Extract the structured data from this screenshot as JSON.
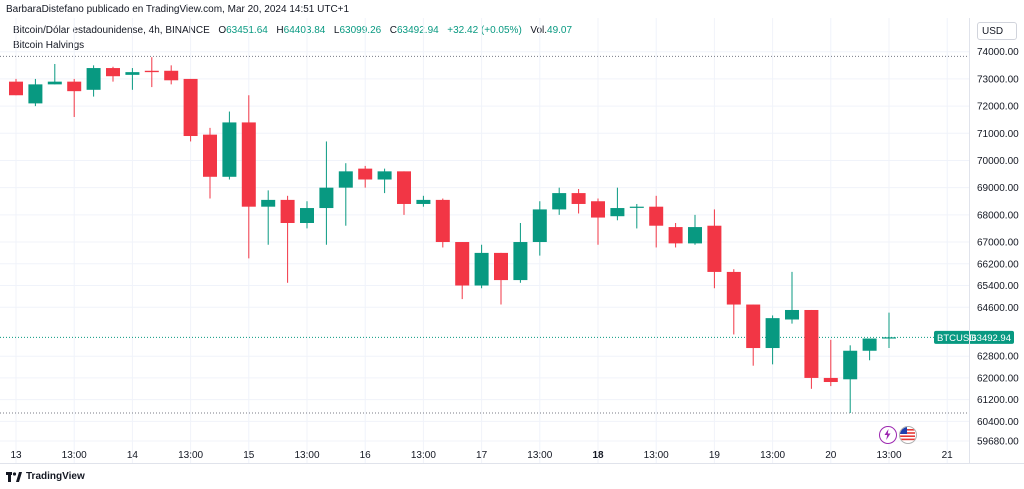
{
  "header": {
    "publisher_line": "BarbaraDistefano publicado en TradingView.com, Mar 20, 2024 14:51 UTC+1"
  },
  "legend": {
    "symbol": "Bitcoin/Dólar estadounidense, 4h, BINANCE",
    "open_label": "O",
    "open": "63451.64",
    "high_label": "H",
    "high": "64403.84",
    "low_label": "L",
    "low": "63099.26",
    "close_label": "C",
    "close": "63492.94",
    "change": "+32.42 (+0.05%)",
    "vol_label": "Vol.",
    "vol": "49.07",
    "indicator": "Bitcoin Halvings"
  },
  "currency": "USD",
  "brand": "TradingView",
  "colors": {
    "up": "#089981",
    "down": "#f23645",
    "text": "#131722",
    "grid": "#f0f3fa",
    "dotted": "#787b86"
  },
  "chart_data": {
    "type": "candlestick",
    "ylim": [
      59680,
      74800
    ],
    "y_ticks": [
      {
        "value": 74000,
        "label": "74000.00"
      },
      {
        "value": 73000,
        "label": "73000.00"
      },
      {
        "value": 72000,
        "label": "72000.00"
      },
      {
        "value": 71000,
        "label": "71000.00"
      },
      {
        "value": 70000,
        "label": "70000.00"
      },
      {
        "value": 69000,
        "label": "69000.00"
      },
      {
        "value": 68000,
        "label": "68000.00"
      },
      {
        "value": 67000,
        "label": "67000.00"
      },
      {
        "value": 66200,
        "label": "66200.00"
      },
      {
        "value": 65400,
        "label": "65400.00"
      },
      {
        "value": 64600,
        "label": "64600.00"
      },
      {
        "value": 62800,
        "label": "62800.00"
      },
      {
        "value": 62000,
        "label": "62000.00"
      },
      {
        "value": 61200,
        "label": "61200.00"
      },
      {
        "value": 60400,
        "label": "60400.00"
      },
      {
        "value": 59680,
        "label": "59680.00"
      }
    ],
    "x_ticks": [
      {
        "index": 0,
        "label": "13",
        "bold": false
      },
      {
        "index": 3,
        "label": "13:00",
        "bold": false
      },
      {
        "index": 6,
        "label": "14",
        "bold": false
      },
      {
        "index": 9,
        "label": "13:00",
        "bold": false
      },
      {
        "index": 12,
        "label": "15",
        "bold": false
      },
      {
        "index": 15,
        "label": "13:00",
        "bold": false
      },
      {
        "index": 18,
        "label": "16",
        "bold": false
      },
      {
        "index": 21,
        "label": "13:00",
        "bold": false
      },
      {
        "index": 24,
        "label": "17",
        "bold": false
      },
      {
        "index": 27,
        "label": "13:00",
        "bold": false
      },
      {
        "index": 30,
        "label": "18",
        "bold": true
      },
      {
        "index": 33,
        "label": "13:00",
        "bold": false
      },
      {
        "index": 36,
        "label": "19",
        "bold": false
      },
      {
        "index": 39,
        "label": "13:00",
        "bold": false
      },
      {
        "index": 42,
        "label": "20",
        "bold": false
      },
      {
        "index": 45,
        "label": "13:00",
        "bold": false
      },
      {
        "index": 48,
        "label": "21",
        "bold": false
      }
    ],
    "current_price": 63492.94,
    "current_price_label": "63492.94",
    "current_symbol": "BTCUSD",
    "dotted_levels": [
      73830,
      60710
    ],
    "candles": [
      {
        "o": 72900,
        "h": 73000,
        "l": 72400,
        "c": 72400
      },
      {
        "o": 72100,
        "h": 73000,
        "l": 72000,
        "c": 72800
      },
      {
        "o": 72800,
        "h": 73550,
        "l": 72800,
        "c": 72900
      },
      {
        "o": 72900,
        "h": 73000,
        "l": 71600,
        "c": 72550
      },
      {
        "o": 72600,
        "h": 73500,
        "l": 72350,
        "c": 73400
      },
      {
        "o": 73400,
        "h": 73450,
        "l": 72900,
        "c": 73100
      },
      {
        "o": 73150,
        "h": 73400,
        "l": 72600,
        "c": 73250
      },
      {
        "o": 73300,
        "h": 73800,
        "l": 72700,
        "c": 73250
      },
      {
        "o": 73300,
        "h": 73500,
        "l": 72800,
        "c": 72950
      },
      {
        "o": 73000,
        "h": 73000,
        "l": 70700,
        "c": 70900
      },
      {
        "o": 70950,
        "h": 71200,
        "l": 68600,
        "c": 69400
      },
      {
        "o": 69400,
        "h": 71800,
        "l": 69300,
        "c": 71400
      },
      {
        "o": 71400,
        "h": 72400,
        "l": 66400,
        "c": 68300
      },
      {
        "o": 68300,
        "h": 68900,
        "l": 66900,
        "c": 68550
      },
      {
        "o": 68550,
        "h": 68700,
        "l": 65500,
        "c": 67700
      },
      {
        "o": 67700,
        "h": 68500,
        "l": 67500,
        "c": 68250
      },
      {
        "o": 68250,
        "h": 70700,
        "l": 66900,
        "c": 69000
      },
      {
        "o": 69000,
        "h": 69900,
        "l": 67600,
        "c": 69600
      },
      {
        "o": 69700,
        "h": 69800,
        "l": 69000,
        "c": 69300
      },
      {
        "o": 69300,
        "h": 69700,
        "l": 68800,
        "c": 69600
      },
      {
        "o": 69600,
        "h": 69600,
        "l": 68000,
        "c": 68400
      },
      {
        "o": 68400,
        "h": 68700,
        "l": 68300,
        "c": 68550
      },
      {
        "o": 68550,
        "h": 68600,
        "l": 66800,
        "c": 67000
      },
      {
        "o": 67000,
        "h": 67000,
        "l": 64900,
        "c": 65400
      },
      {
        "o": 65400,
        "h": 66900,
        "l": 65300,
        "c": 66600
      },
      {
        "o": 66600,
        "h": 66600,
        "l": 64700,
        "c": 65600
      },
      {
        "o": 65600,
        "h": 67700,
        "l": 65500,
        "c": 67000
      },
      {
        "o": 67000,
        "h": 68500,
        "l": 66500,
        "c": 68200
      },
      {
        "o": 68200,
        "h": 69000,
        "l": 68000,
        "c": 68800
      },
      {
        "o": 68800,
        "h": 68950,
        "l": 68050,
        "c": 68400
      },
      {
        "o": 68500,
        "h": 68600,
        "l": 66900,
        "c": 67900
      },
      {
        "o": 67950,
        "h": 69000,
        "l": 67800,
        "c": 68250
      },
      {
        "o": 68300,
        "h": 68400,
        "l": 67500,
        "c": 68300
      },
      {
        "o": 68300,
        "h": 68700,
        "l": 66800,
        "c": 67600
      },
      {
        "o": 67550,
        "h": 67700,
        "l": 66800,
        "c": 66950
      },
      {
        "o": 66950,
        "h": 68000,
        "l": 66900,
        "c": 67550
      },
      {
        "o": 67600,
        "h": 68200,
        "l": 65300,
        "c": 65900
      },
      {
        "o": 65900,
        "h": 66000,
        "l": 63600,
        "c": 64700
      },
      {
        "o": 64700,
        "h": 64700,
        "l": 62450,
        "c": 63100
      },
      {
        "o": 63100,
        "h": 64300,
        "l": 62500,
        "c": 64200
      },
      {
        "o": 64150,
        "h": 65900,
        "l": 64000,
        "c": 64500
      },
      {
        "o": 64500,
        "h": 64500,
        "l": 61600,
        "c": 62000
      },
      {
        "o": 62000,
        "h": 63400,
        "l": 61700,
        "c": 61850
      },
      {
        "o": 61950,
        "h": 63200,
        "l": 60710,
        "c": 63000
      },
      {
        "o": 63000,
        "h": 63300,
        "l": 62650,
        "c": 63450
      },
      {
        "o": 63451.64,
        "h": 64403.84,
        "l": 63099.26,
        "c": 63492.94
      }
    ]
  }
}
